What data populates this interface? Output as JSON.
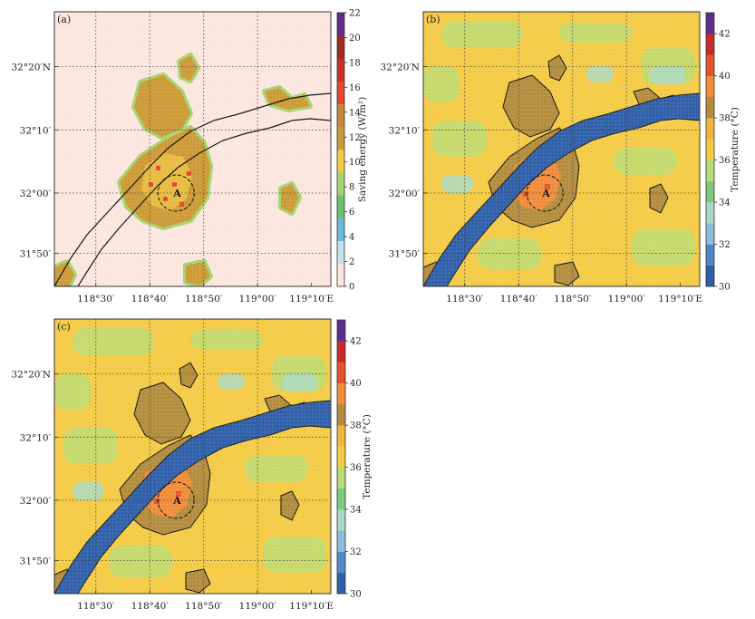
{
  "chart_data": [
    {
      "type": "heatmap",
      "panel_label": "(a)",
      "colorbar": {
        "label": "Saving energy (W/m²)",
        "ticks": [
          "0",
          "2",
          "4",
          "6",
          "8",
          "10",
          "12",
          "14",
          "16",
          "18",
          "20",
          "22"
        ],
        "range": [
          0,
          22
        ],
        "colors": [
          "#fbe6de",
          "#c6e0ec",
          "#69b9da",
          "#6cc26c",
          "#a5d36f",
          "#f2c945",
          "#cc9a36",
          "#c9873b",
          "#e8452e",
          "#cc2e2a",
          "#9c2a22",
          "#5e2b8a"
        ]
      },
      "x_ticks": [
        "118°30′",
        "118°40′",
        "118°50′",
        "119°00′",
        "119°10′E"
      ],
      "y_ticks": [
        "32°20′N",
        "32°10′",
        "32°00′",
        "31°50′"
      ],
      "annotation": "A"
    },
    {
      "type": "heatmap",
      "panel_label": "(b)",
      "colorbar": {
        "label": "Temperature (°C)",
        "ticks": [
          "30",
          "32",
          "34",
          "36",
          "38",
          "40",
          "42"
        ],
        "range": [
          30,
          43
        ],
        "colors": [
          "#2f5fa8",
          "#4f88c6",
          "#8ebddc",
          "#a7d9c5",
          "#7fc97f",
          "#b5dc77",
          "#f4cb45",
          "#f2b441",
          "#b38c3d",
          "#f08c3b",
          "#e6522b",
          "#c72b2b",
          "#5b2d8c"
        ]
      },
      "x_ticks": [
        "118°30′",
        "118°40′",
        "118°50′",
        "119°00′",
        "119°10′E"
      ],
      "y_ticks": [
        "32°20′N",
        "32°10′",
        "32°00′",
        "31°50′"
      ],
      "annotation": "A"
    },
    {
      "type": "heatmap",
      "panel_label": "(c)",
      "colorbar": {
        "label": "Temperature (°C)",
        "ticks": [
          "30",
          "32",
          "34",
          "36",
          "38",
          "40",
          "42"
        ],
        "range": [
          30,
          43
        ],
        "colors": [
          "#2f5fa8",
          "#4f88c6",
          "#8ebddc",
          "#a7d9c5",
          "#7fc97f",
          "#b5dc77",
          "#f4cb45",
          "#f2b441",
          "#b38c3d",
          "#f08c3b",
          "#e6522b",
          "#c72b2b",
          "#5b2d8c"
        ]
      },
      "x_ticks": [
        "118°30′",
        "118°40′",
        "118°50′",
        "119°00′",
        "119°10′E"
      ],
      "y_ticks": [
        "32°20′N",
        "32°10′",
        "32°00′",
        "31°50′"
      ],
      "annotation": "A"
    }
  ]
}
